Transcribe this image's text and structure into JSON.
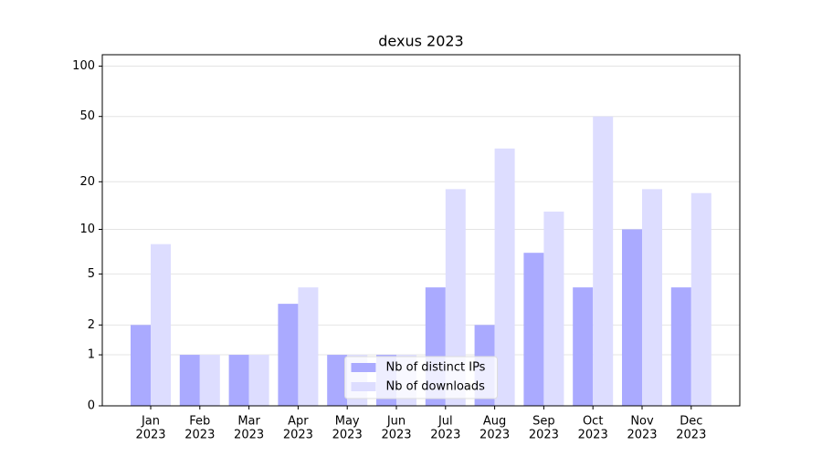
{
  "chart_data": {
    "type": "bar",
    "title": "dexus 2023",
    "scale": "log1p",
    "categories": [
      [
        "Jan",
        "2023"
      ],
      [
        "Feb",
        "2023"
      ],
      [
        "Mar",
        "2023"
      ],
      [
        "Apr",
        "2023"
      ],
      [
        "May",
        "2023"
      ],
      [
        "Jun",
        "2023"
      ],
      [
        "Jul",
        "2023"
      ],
      [
        "Aug",
        "2023"
      ],
      [
        "Sep",
        "2023"
      ],
      [
        "Oct",
        "2023"
      ],
      [
        "Nov",
        "2023"
      ],
      [
        "Dec",
        "2023"
      ]
    ],
    "series": [
      {
        "name": "Nb of distinct IPs",
        "color": "#aaaaff",
        "values": [
          2,
          1,
          1,
          3,
          1,
          1,
          4,
          2,
          7,
          4,
          10,
          4
        ]
      },
      {
        "name": "Nb of downloads",
        "color": "#ddddff",
        "values": [
          8,
          1,
          1,
          4,
          1,
          1,
          18,
          32,
          13,
          50,
          18,
          17
        ]
      }
    ],
    "ylim": [
      0,
      117
    ],
    "yticks": [
      0,
      1,
      2,
      5,
      10,
      20,
      50,
      100
    ],
    "grid": true,
    "legend": "lower center"
  }
}
